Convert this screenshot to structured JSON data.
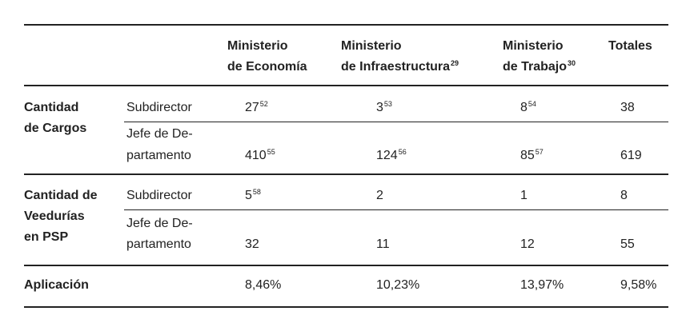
{
  "table": {
    "header": [
      {
        "lines": [
          "Ministerio",
          "de Economía"
        ]
      },
      {
        "lines": [
          "Ministerio",
          "de Infraestructura"
        ],
        "sup": "29"
      },
      {
        "lines": [
          "Ministerio",
          "de Trabajo"
        ],
        "sup": "30"
      },
      {
        "lines": [
          "Totales"
        ]
      }
    ],
    "groups": [
      {
        "label": [
          "Cantidad",
          "de Cargos"
        ],
        "rows": [
          {
            "label": [
              "Subdirector"
            ],
            "cells": [
              {
                "text": "27",
                "sup": "52"
              },
              {
                "text": "3",
                "sup": "53"
              },
              {
                "text": "8",
                "sup": "54"
              },
              {
                "text": "38"
              }
            ]
          },
          {
            "label": [
              "Jefe de De-",
              "partamento"
            ],
            "cells": [
              {
                "text": "410",
                "sup": "55"
              },
              {
                "text": "124",
                "sup": "56"
              },
              {
                "text": "85",
                "sup": "57"
              },
              {
                "text": "619"
              }
            ]
          }
        ]
      },
      {
        "label": [
          "Cantidad de",
          "Veedurías",
          "en PSP"
        ],
        "rows": [
          {
            "label": [
              "Subdirector"
            ],
            "cells": [
              {
                "text": "5",
                "sup": "58"
              },
              {
                "text": "2"
              },
              {
                "text": "1"
              },
              {
                "text": "8"
              }
            ]
          },
          {
            "label": [
              "Jefe de De-",
              "partamento"
            ],
            "cells": [
              {
                "text": "32"
              },
              {
                "text": "11"
              },
              {
                "text": "12"
              },
              {
                "text": "55"
              }
            ]
          }
        ]
      }
    ],
    "footer": {
      "label": "Aplicación",
      "cells": [
        "8,46%",
        "10,23%",
        "13,97%",
        "9,58%"
      ]
    }
  }
}
